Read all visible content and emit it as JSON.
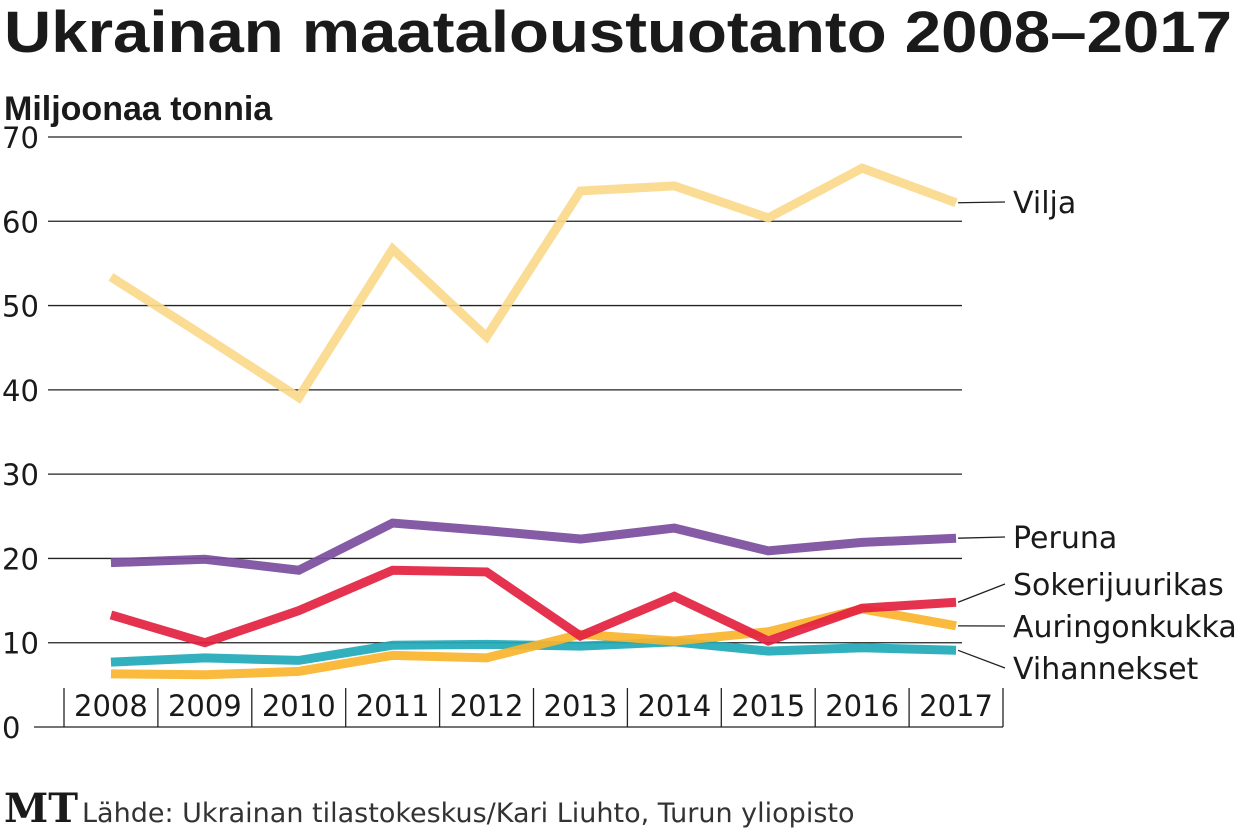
{
  "chart_data": {
    "type": "line",
    "title": "Ukrainan maataloustuotanto 2008–2017",
    "ylabel": "Miljoonaa tonnia",
    "xlabel": "",
    "ylim": [
      0,
      70
    ],
    "yticks": [
      0,
      10,
      20,
      30,
      40,
      50,
      60,
      70
    ],
    "grid": true,
    "legend": "right (line-end labels)",
    "categories": [
      "2008",
      "2009",
      "2010",
      "2011",
      "2012",
      "2013",
      "2014",
      "2015",
      "2016",
      "2017"
    ],
    "series": [
      {
        "name": "Vilja",
        "color": "#fbd98c",
        "values": [
          53.4,
          46.3,
          39.1,
          56.7,
          46.3,
          63.6,
          64.2,
          60.4,
          66.3,
          62.2
        ]
      },
      {
        "name": "Peruna",
        "color": "#7b4d9e",
        "values": [
          19.5,
          19.9,
          18.6,
          24.2,
          23.3,
          22.3,
          23.6,
          20.9,
          21.9,
          22.4
        ]
      },
      {
        "name": "Sokerijuurikas",
        "color": "#e3213f",
        "values": [
          13.3,
          10.0,
          13.8,
          18.6,
          18.4,
          10.8,
          15.5,
          10.2,
          14.1,
          14.8
        ]
      },
      {
        "name": "Auringonkukka",
        "color": "#f8b42c",
        "values": [
          6.3,
          6.2,
          6.6,
          8.5,
          8.2,
          11.0,
          10.2,
          11.3,
          14.0,
          12.0
        ]
      },
      {
        "name": "Vihannekset",
        "color": "#22a9b8",
        "values": [
          7.7,
          8.2,
          7.9,
          9.7,
          9.8,
          9.6,
          10.1,
          9.0,
          9.4,
          9.1
        ]
      }
    ]
  },
  "footer": {
    "logo": "MT",
    "source": "Lähde: Ukrainan tilastokeskus/Kari Liuhto, Turun yliopisto"
  }
}
